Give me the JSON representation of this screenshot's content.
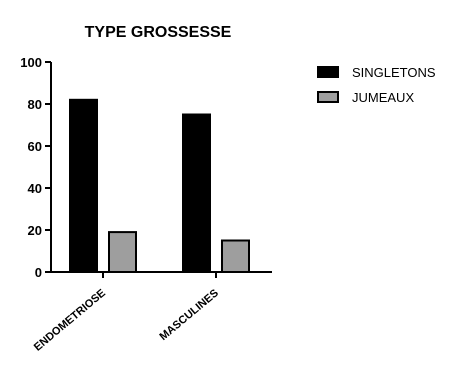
{
  "chart_data": {
    "type": "bar",
    "title": "TYPE GROSSESSE",
    "xlabel": "",
    "ylabel": "",
    "categories": [
      "ENDOMETRIOSE",
      "MASCULINES"
    ],
    "series": [
      {
        "name": "SINGLETONS",
        "values": [
          82,
          75
        ],
        "color": "#000000"
      },
      {
        "name": "JUMEAUX",
        "values": [
          19,
          15
        ],
        "color": "#9e9e9e"
      }
    ],
    "ylim": [
      0,
      100
    ],
    "yticks": [
      "0",
      "20",
      "40",
      "60",
      "80",
      "100"
    ],
    "grid": false,
    "legend": "right"
  }
}
